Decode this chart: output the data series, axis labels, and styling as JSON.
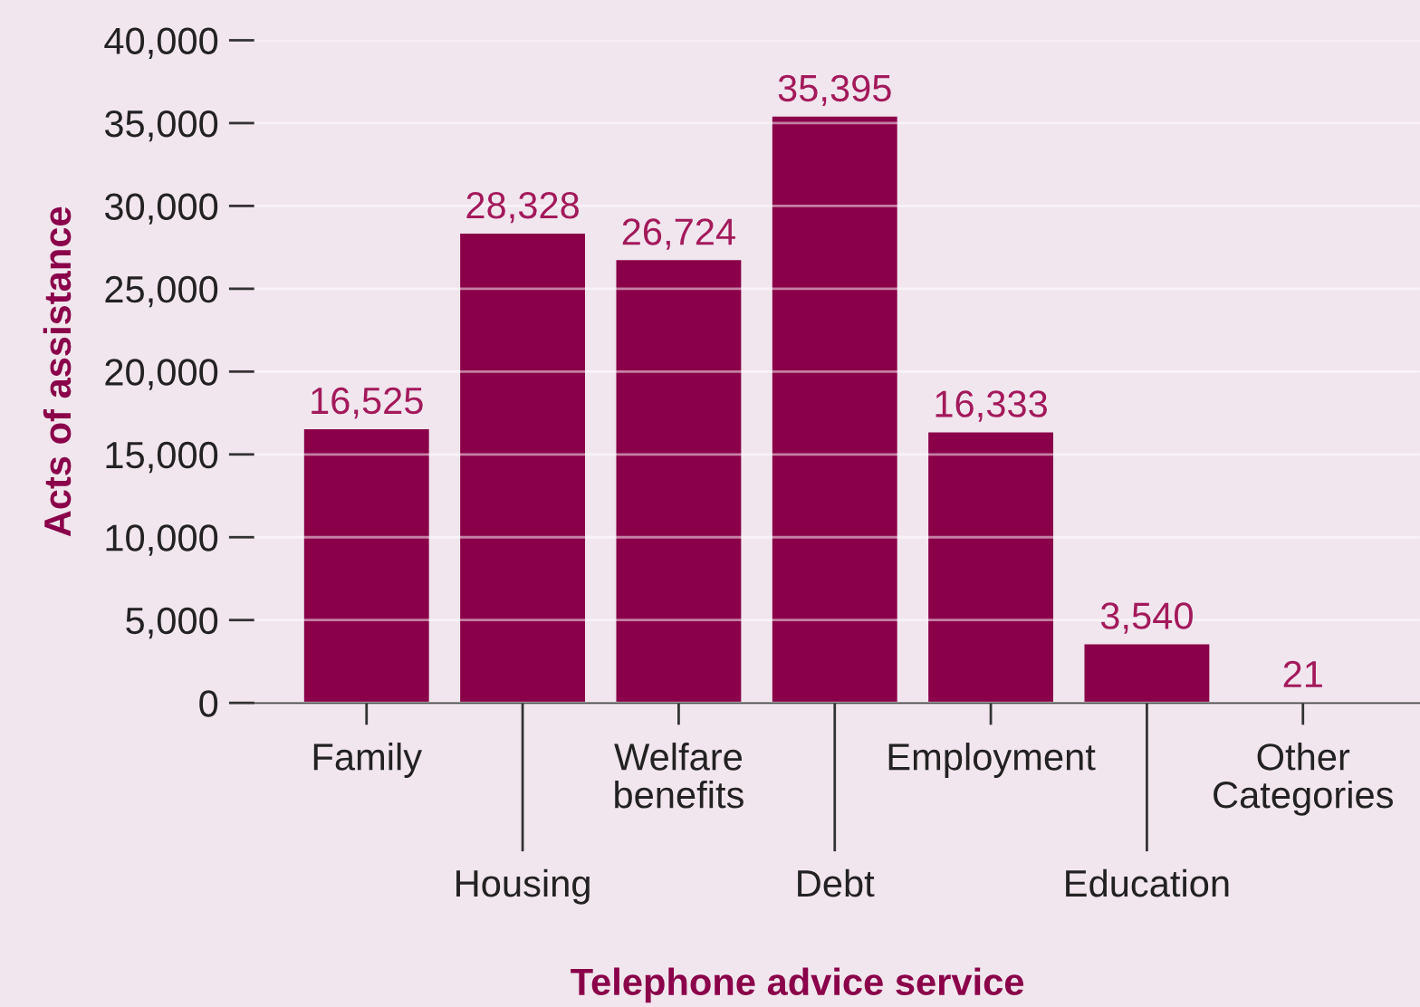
{
  "chart_data": {
    "type": "bar",
    "xlabel": "Telephone advice service",
    "ylabel": "Acts of assistance",
    "categories": [
      "Family",
      "Housing",
      "Welfare\nbenefits",
      "Debt",
      "Employment",
      "Education",
      "Other\nCategories"
    ],
    "values": [
      16525,
      28328,
      26724,
      35395,
      16333,
      3540,
      21
    ],
    "value_labels": [
      "16,525",
      "28,328",
      "26,724",
      "35,395",
      "16,333",
      "3,540",
      "21"
    ],
    "color": "#8a0049",
    "ylim": [
      0,
      40000
    ],
    "yticks": [
      {
        "value": 0,
        "label": "0"
      },
      {
        "value": 5000,
        "label": "5,000"
      },
      {
        "value": 10000,
        "label": "10,000"
      },
      {
        "value": 15000,
        "label": "15,000"
      },
      {
        "value": 20000,
        "label": "20,000"
      },
      {
        "value": 25000,
        "label": "25,000"
      },
      {
        "value": 30000,
        "label": "30,000"
      },
      {
        "value": 35000,
        "label": "35,000"
      },
      {
        "value": 40000,
        "label": "40,000"
      }
    ],
    "grid": "y"
  }
}
